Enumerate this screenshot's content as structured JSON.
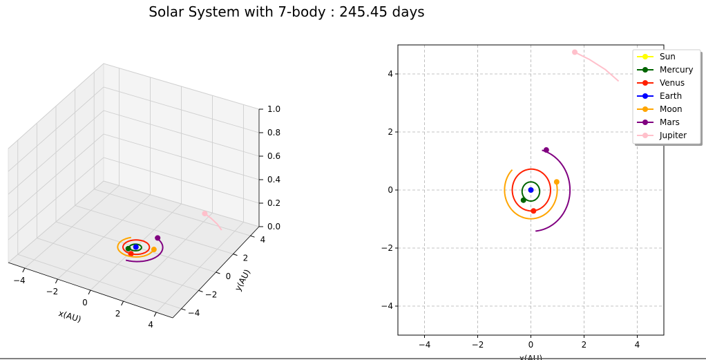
{
  "title": "Solar System with 7-body : 245.45 days",
  "colors": {
    "Sun": "#ffff00",
    "Mercury": "#006400",
    "Venus": "#ff2000",
    "Earth": "#0000ff",
    "Moon": "#ffa500",
    "Mars": "#800080",
    "Jupiter": "#ffc0cb",
    "grid": "#b0b0b0",
    "pane": "#f2f2f2",
    "axis": "#000000"
  },
  "chart_data": [
    {
      "type": "line3d",
      "title": "",
      "xlabel": "x(AU)",
      "ylabel": "y(AU)",
      "zlabel": "",
      "xticks": [
        -4,
        -2,
        0,
        2,
        4
      ],
      "yticks": [
        -4,
        -2,
        0,
        2,
        4
      ],
      "zticks": [
        0.0,
        0.2,
        0.4,
        0.6,
        0.8,
        1.0
      ],
      "xlim": [
        -5,
        5
      ],
      "ylim": [
        -5,
        5
      ],
      "zlim": [
        0,
        1
      ],
      "grid": true,
      "series_ref": "shared"
    },
    {
      "type": "line",
      "title": "",
      "xlabel": "x(AU)",
      "ylabel": "",
      "xticks": [
        -4,
        -2,
        0,
        2,
        4
      ],
      "yticks": [
        -4,
        -2,
        0,
        2,
        4
      ],
      "xlim": [
        -5,
        5
      ],
      "ylim": [
        -5,
        5
      ],
      "grid": true,
      "legend": "top-right",
      "series_ref": "shared"
    }
  ],
  "series": [
    {
      "name": "Sun",
      "orbit": {
        "cx": 0,
        "cy": 0,
        "r": 0.0,
        "a0": 0,
        "a1": 0
      },
      "end": [
        0.0,
        0.0
      ]
    },
    {
      "name": "Mercury",
      "orbit": {
        "cx": 0,
        "cy": -0.05,
        "r": 0.33,
        "a0": 0,
        "a1": 360
      },
      "end": [
        -0.28,
        -0.35
      ]
    },
    {
      "name": "Venus",
      "orbit": {
        "cx": 0.02,
        "cy": 0.0,
        "r": 0.72,
        "a0": -88,
        "a1": 272
      },
      "end": [
        0.1,
        -0.72
      ]
    },
    {
      "name": "Earth",
      "orbit": {
        "cx": 0,
        "cy": 0,
        "r": 0.0,
        "a0": 0,
        "a1": 0
      },
      "end": [
        0.0,
        0.0
      ]
    },
    {
      "name": "Moon",
      "orbit": {
        "cx": 0.0,
        "cy": 0.0,
        "r": 0.99,
        "a0": 135,
        "a1": 375
      },
      "end": [
        0.97,
        0.28
      ]
    },
    {
      "name": "Mars",
      "orbit": {
        "cx": 0.05,
        "cy": 0.0,
        "r": 1.42,
        "a0": -85,
        "a1": 75
      },
      "end": [
        0.58,
        1.38
      ]
    },
    {
      "name": "Jupiter",
      "points": [
        [
          1.65,
          4.75
        ],
        [
          2.2,
          4.5
        ],
        [
          2.8,
          4.15
        ],
        [
          3.3,
          3.75
        ]
      ],
      "end": [
        1.65,
        4.75
      ]
    }
  ]
}
